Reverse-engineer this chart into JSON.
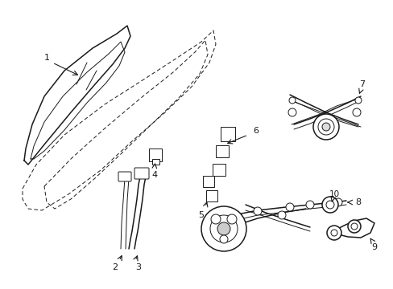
{
  "bg_color": "#ffffff",
  "line_color": "#1a1a1a",
  "figsize": [
    4.89,
    3.6
  ],
  "dpi": 100,
  "lw_main": 1.1,
  "lw_thin": 0.7,
  "label_fs": 8
}
